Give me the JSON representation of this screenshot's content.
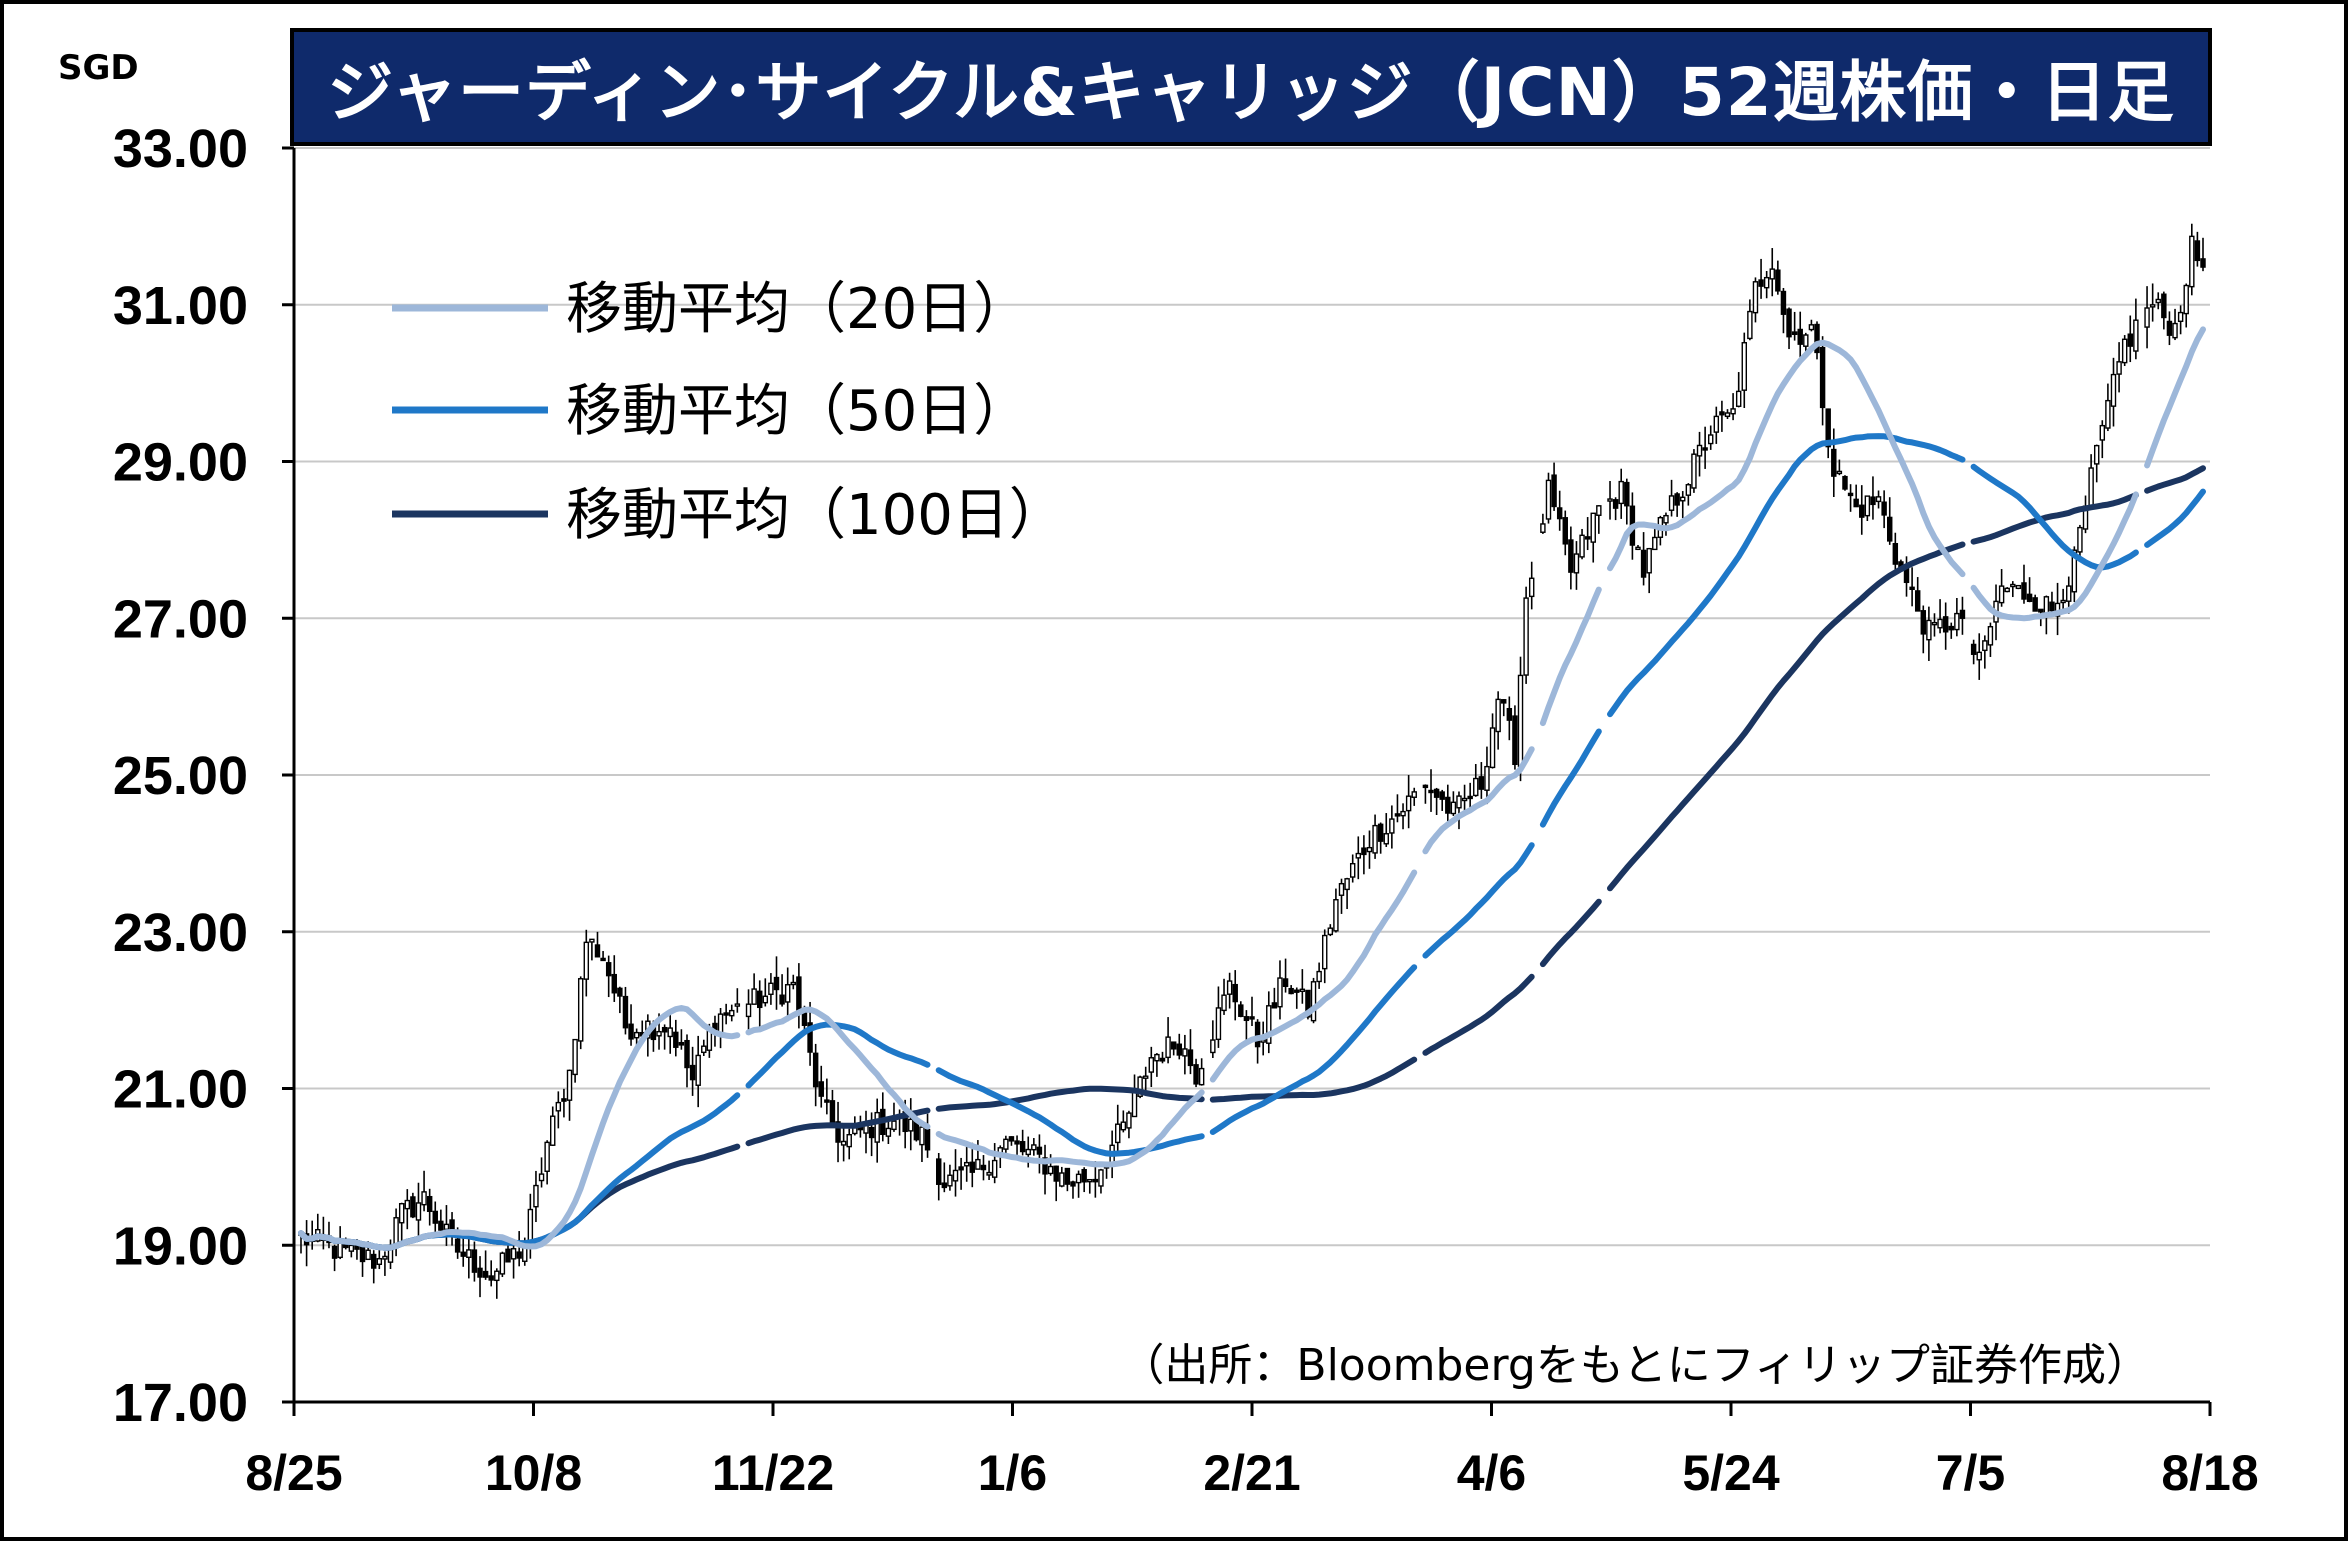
{
  "chart_data": {
    "type": "candlestick-line",
    "title": "ジャーディン･サイクル&キャリッジ（JCN）52週株価・日足",
    "unit": "SGD",
    "source": "（出所：Bloombergをもとにフィリップ証券作成）",
    "ylim": [
      17,
      33
    ],
    "y_ticks": [
      "33.00",
      "31.00",
      "29.00",
      "27.00",
      "25.00",
      "23.00",
      "21.00",
      "19.00",
      "17.00"
    ],
    "x_ticks": [
      "8/25",
      "10/8",
      "11/22",
      "1/6",
      "2/21",
      "4/6",
      "5/24",
      "7/5",
      "8/18"
    ],
    "grid": true,
    "legend": {
      "placement": "top-left",
      "entries": [
        {
          "name": "移動平均（20日）",
          "color": "#9db7d9"
        },
        {
          "name": "移動平均（50日）",
          "color": "#1f78c8"
        },
        {
          "name": "移動平均（100日）",
          "color": "#1b3560"
        }
      ]
    },
    "price_anchors": [
      [
        0,
        19.1
      ],
      [
        8,
        18.9
      ],
      [
        14,
        18.8
      ],
      [
        18,
        19.4
      ],
      [
        22,
        19.6
      ],
      [
        27,
        19.0
      ],
      [
        34,
        18.6
      ],
      [
        40,
        19.0
      ],
      [
        44,
        20.3
      ],
      [
        48,
        21.2
      ],
      [
        51,
        22.9
      ],
      [
        54,
        22.7
      ],
      [
        58,
        21.8
      ],
      [
        66,
        21.8
      ],
      [
        70,
        21.1
      ],
      [
        74,
        21.9
      ],
      [
        84,
        22.2
      ],
      [
        88,
        22.3
      ],
      [
        93,
        20.8
      ],
      [
        97,
        20.3
      ],
      [
        101,
        20.5
      ],
      [
        106,
        20.6
      ],
      [
        111,
        20.4
      ],
      [
        115,
        19.8
      ],
      [
        120,
        19.9
      ],
      [
        126,
        20.3
      ],
      [
        132,
        20.1
      ],
      [
        137,
        19.8
      ],
      [
        142,
        19.9
      ],
      [
        147,
        20.5
      ],
      [
        152,
        21.4
      ],
      [
        157,
        21.6
      ],
      [
        160,
        21.2
      ],
      [
        166,
        22.3
      ],
      [
        171,
        21.6
      ],
      [
        176,
        22.4
      ],
      [
        180,
        22.0
      ],
      [
        185,
        23.4
      ],
      [
        191,
        24.2
      ],
      [
        196,
        24.5
      ],
      [
        201,
        24.9
      ],
      [
        206,
        24.5
      ],
      [
        211,
        24.9
      ],
      [
        214,
        26.0
      ],
      [
        217,
        25.3
      ],
      [
        219,
        27.3
      ],
      [
        223,
        28.6
      ],
      [
        227,
        27.6
      ],
      [
        232,
        28.4
      ],
      [
        236,
        28.6
      ],
      [
        240,
        27.6
      ],
      [
        244,
        28.3
      ],
      [
        248,
        28.8
      ],
      [
        252,
        29.4
      ],
      [
        256,
        29.6
      ],
      [
        260,
        31.2
      ],
      [
        263,
        31.6
      ],
      [
        266,
        30.6
      ],
      [
        270,
        30.7
      ],
      [
        274,
        28.9
      ],
      [
        278,
        28.4
      ],
      [
        282,
        28.5
      ],
      [
        286,
        27.6
      ],
      [
        291,
        26.8
      ],
      [
        296,
        27.0
      ],
      [
        300,
        26.4
      ],
      [
        304,
        27.4
      ],
      [
        309,
        27.3
      ],
      [
        313,
        27.1
      ],
      [
        317,
        27.7
      ],
      [
        321,
        29.1
      ],
      [
        326,
        30.5
      ],
      [
        331,
        31.0
      ],
      [
        335,
        30.7
      ],
      [
        338,
        31.7
      ],
      [
        340,
        31.5
      ]
    ],
    "breaks": [
      79,
      113,
      162,
      200,
      221,
      233,
      298,
      329
    ],
    "ma_options": {
      "ma20": 20,
      "ma50": 50,
      "ma100": 100
    }
  }
}
